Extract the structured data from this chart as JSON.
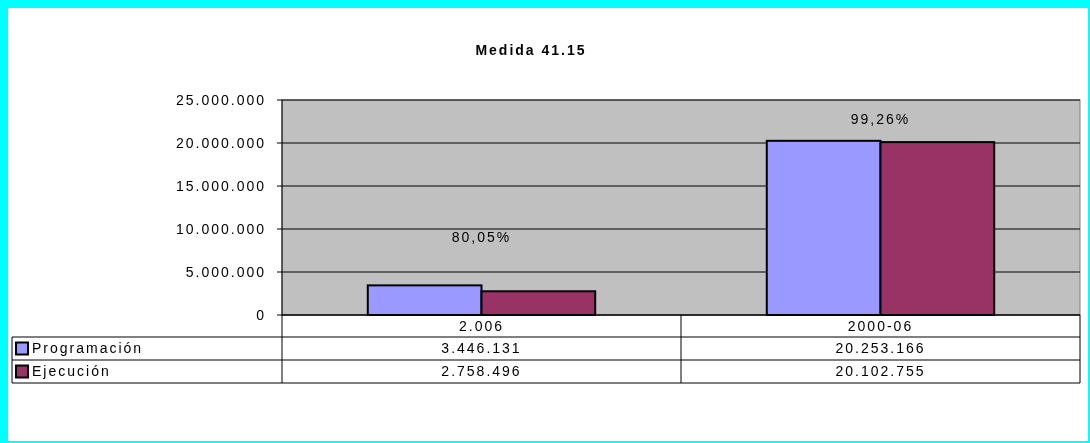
{
  "chart_data": {
    "type": "bar",
    "title": "Medida 41.15",
    "categories": [
      "2.006",
      "2000-06"
    ],
    "series": [
      {
        "name": "Programación",
        "color": "#9999ff",
        "values": [
          3446131,
          20253166
        ],
        "value_labels": [
          "3.446.131",
          "20.253.166"
        ]
      },
      {
        "name": "Ejecución",
        "color": "#993366",
        "values": [
          2758496,
          20102755
        ],
        "value_labels": [
          "2.758.496",
          "20.102.755"
        ]
      }
    ],
    "ylim": [
      0,
      25000000
    ],
    "yticks": [
      {
        "value": 0,
        "label": "0"
      },
      {
        "value": 5000000,
        "label": "5.000.000"
      },
      {
        "value": 10000000,
        "label": "10.000.000"
      },
      {
        "value": 15000000,
        "label": "15.000.000"
      },
      {
        "value": 20000000,
        "label": "20.000.000"
      },
      {
        "value": 25000000,
        "label": "25.000.000"
      }
    ],
    "grid": "y",
    "legend": "bottom",
    "annotations": [
      "80,05%",
      "99,26%"
    ]
  }
}
